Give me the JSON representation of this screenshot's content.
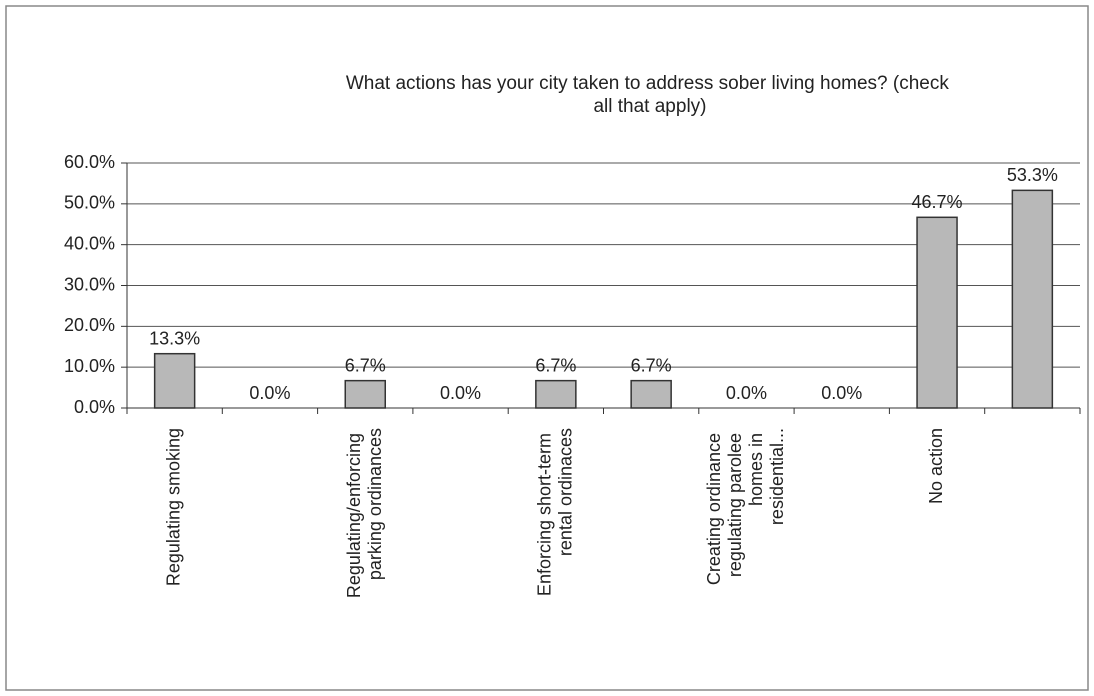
{
  "chart_data": {
    "type": "bar",
    "title": "What actions has your city taken to address sober living homes? (check all that apply)",
    "categories": [
      "Regulating smoking",
      null,
      "Regulating/enforcing parking ordinances",
      null,
      "Enforcing short-term rental ordinaces",
      null,
      "Creating ordinance regulating parolee homes in residential...",
      null,
      "No action",
      null
    ],
    "values": [
      13.3,
      0,
      6.7,
      0,
      6.7,
      6.7,
      0,
      0,
      46.7,
      53.3
    ],
    "value_labels": [
      "13.3%",
      "0.0%",
      "6.7%",
      "0.0%",
      "6.7%",
      "6.7%",
      "0.0%",
      "0.0%",
      "46.7%",
      "53.3%"
    ],
    "color": "#b8b8b8",
    "ylim": [
      0,
      60
    ],
    "yticks": [
      {
        "value": 0,
        "label": "0.0%"
      },
      {
        "value": 10,
        "label": "10.0%"
      },
      {
        "value": 20,
        "label": "20.0%"
      },
      {
        "value": 30,
        "label": "30.0%"
      },
      {
        "value": 40,
        "label": "40.0%"
      },
      {
        "value": 50,
        "label": "50.0%"
      },
      {
        "value": 60,
        "label": "60.0%"
      }
    ],
    "grid": true
  }
}
